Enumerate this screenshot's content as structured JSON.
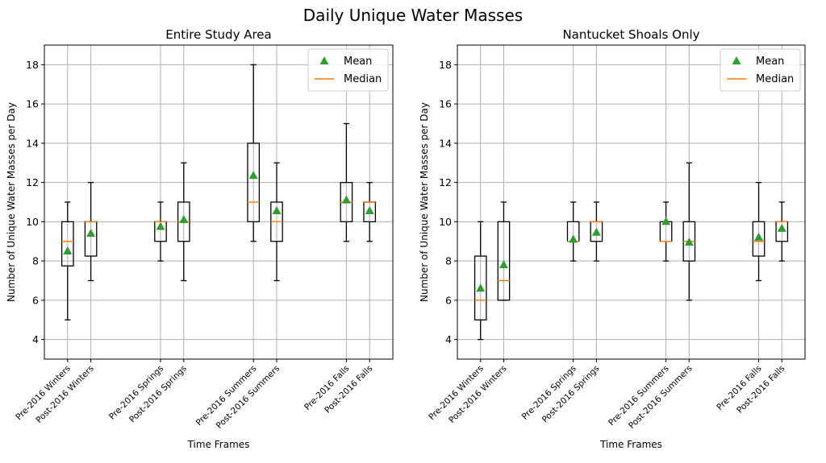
{
  "figure_title": "Daily Unique Water Masses",
  "chart_data": [
    {
      "type": "box",
      "title": "Entire Study Area",
      "xlabel": "Time Frames",
      "ylabel": "Number of Unique Water Masses per Day",
      "ylim": [
        3,
        19
      ],
      "yticks": [
        4,
        6,
        8,
        10,
        12,
        14,
        16,
        18
      ],
      "grid": true,
      "legend": {
        "placement": "top-right",
        "entries": [
          "Mean",
          "Median"
        ]
      },
      "categories": [
        "Pre-2016 Winters",
        "Post-2016 Winters",
        "Pre-2016 Springs",
        "Post-2016 Springs",
        "Pre-2016 Summers",
        "Post-2016 Summers",
        "Pre-2016 Falls",
        "Post-2016 Falls"
      ],
      "x": [
        1,
        2,
        5,
        6,
        9,
        10,
        13,
        14
      ],
      "boxes": [
        {
          "whislo": 5,
          "q1": 7.75,
          "med": 9,
          "q3": 10,
          "whishi": 11,
          "mean": 8.5
        },
        {
          "whislo": 7,
          "q1": 8.25,
          "med": 10,
          "q3": 10,
          "whishi": 12,
          "mean": 9.4
        },
        {
          "whislo": 8,
          "q1": 9,
          "med": 10,
          "q3": 10,
          "whishi": 11,
          "mean": 9.75
        },
        {
          "whislo": 7,
          "q1": 9,
          "med": 10,
          "q3": 11,
          "whishi": 13,
          "mean": 10.1
        },
        {
          "whislo": 9,
          "q1": 10,
          "med": 11,
          "q3": 14,
          "whishi": 18,
          "mean": 12.35
        },
        {
          "whislo": 7,
          "q1": 9,
          "med": 10,
          "q3": 11,
          "whishi": 13,
          "mean": 10.55
        },
        {
          "whislo": 9,
          "q1": 10,
          "med": 11,
          "q3": 12,
          "whishi": 15,
          "mean": 11.1
        },
        {
          "whislo": 9,
          "q1": 10,
          "med": 11,
          "q3": 11,
          "whishi": 12,
          "mean": 10.55
        }
      ]
    },
    {
      "type": "box",
      "title": "Nantucket Shoals Only",
      "xlabel": "Time Frames",
      "ylabel": "Number of Unique Water Masses per Day",
      "ylim": [
        3,
        19
      ],
      "yticks": [
        4,
        6,
        8,
        10,
        12,
        14,
        16,
        18
      ],
      "grid": true,
      "legend": {
        "placement": "top-right",
        "entries": [
          "Mean",
          "Median"
        ]
      },
      "categories": [
        "Pre-2016 Winters",
        "Post-2016 Winters",
        "Pre-2016 Springs",
        "Post-2016 Springs",
        "Pre-2016 Summers",
        "Post-2016 Summers",
        "Pre-2016 Falls",
        "Post-2016 Falls"
      ],
      "x": [
        1,
        2,
        5,
        6,
        9,
        10,
        13,
        14
      ],
      "boxes": [
        {
          "whislo": 4,
          "q1": 5,
          "med": 6,
          "q3": 8.25,
          "whishi": 10,
          "mean": 6.6
        },
        {
          "whislo": 6,
          "q1": 6,
          "med": 7,
          "q3": 10,
          "whishi": 11,
          "mean": 7.8
        },
        {
          "whislo": 8,
          "q1": 9,
          "med": 9,
          "q3": 10,
          "whishi": 11,
          "mean": 9.1
        },
        {
          "whislo": 8,
          "q1": 9,
          "med": 10,
          "q3": 10,
          "whishi": 11,
          "mean": 9.45
        },
        {
          "whislo": 8,
          "q1": 9,
          "med": 9,
          "q3": 10,
          "whishi": 11,
          "mean": 10.0
        },
        {
          "whislo": 6,
          "q1": 8,
          "med": 9,
          "q3": 10,
          "whishi": 13,
          "mean": 8.95
        },
        {
          "whislo": 7,
          "q1": 8.25,
          "med": 9,
          "q3": 10,
          "whishi": 12,
          "mean": 9.2
        },
        {
          "whislo": 8,
          "q1": 9,
          "med": 10,
          "q3": 10,
          "whishi": 11,
          "mean": 9.65
        }
      ]
    }
  ],
  "colors": {
    "mean_marker": "#2ca02c",
    "median_line": "#ff7f0e",
    "box": "#000000",
    "grid": "#b0b0b0"
  }
}
